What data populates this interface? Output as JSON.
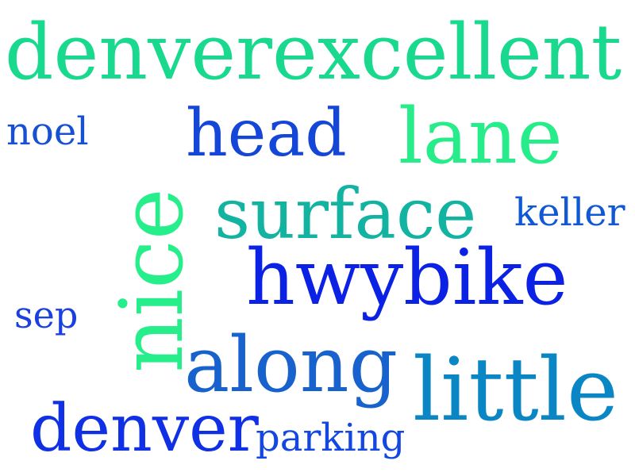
{
  "words": [
    {
      "text": "denverexcellent",
      "color": "#19d98f"
    },
    {
      "text": "noel",
      "color": "#1750d0"
    },
    {
      "text": "nice",
      "color": "#25ee8b"
    },
    {
      "text": "head",
      "color": "#1446d8"
    },
    {
      "text": "lane",
      "color": "#27ec8a"
    },
    {
      "text": "surface",
      "color": "#13b3a2"
    },
    {
      "text": "keller",
      "color": "#1058d4"
    },
    {
      "text": "hwybike",
      "color": "#0b22e4"
    },
    {
      "text": "sep",
      "color": "#1a40e0"
    },
    {
      "text": "along",
      "color": "#1762cc"
    },
    {
      "text": "little",
      "color": "#0a86c4"
    },
    {
      "text": "denver",
      "color": "#1030e6"
    },
    {
      "text": "parking",
      "color": "#1446e0"
    }
  ]
}
